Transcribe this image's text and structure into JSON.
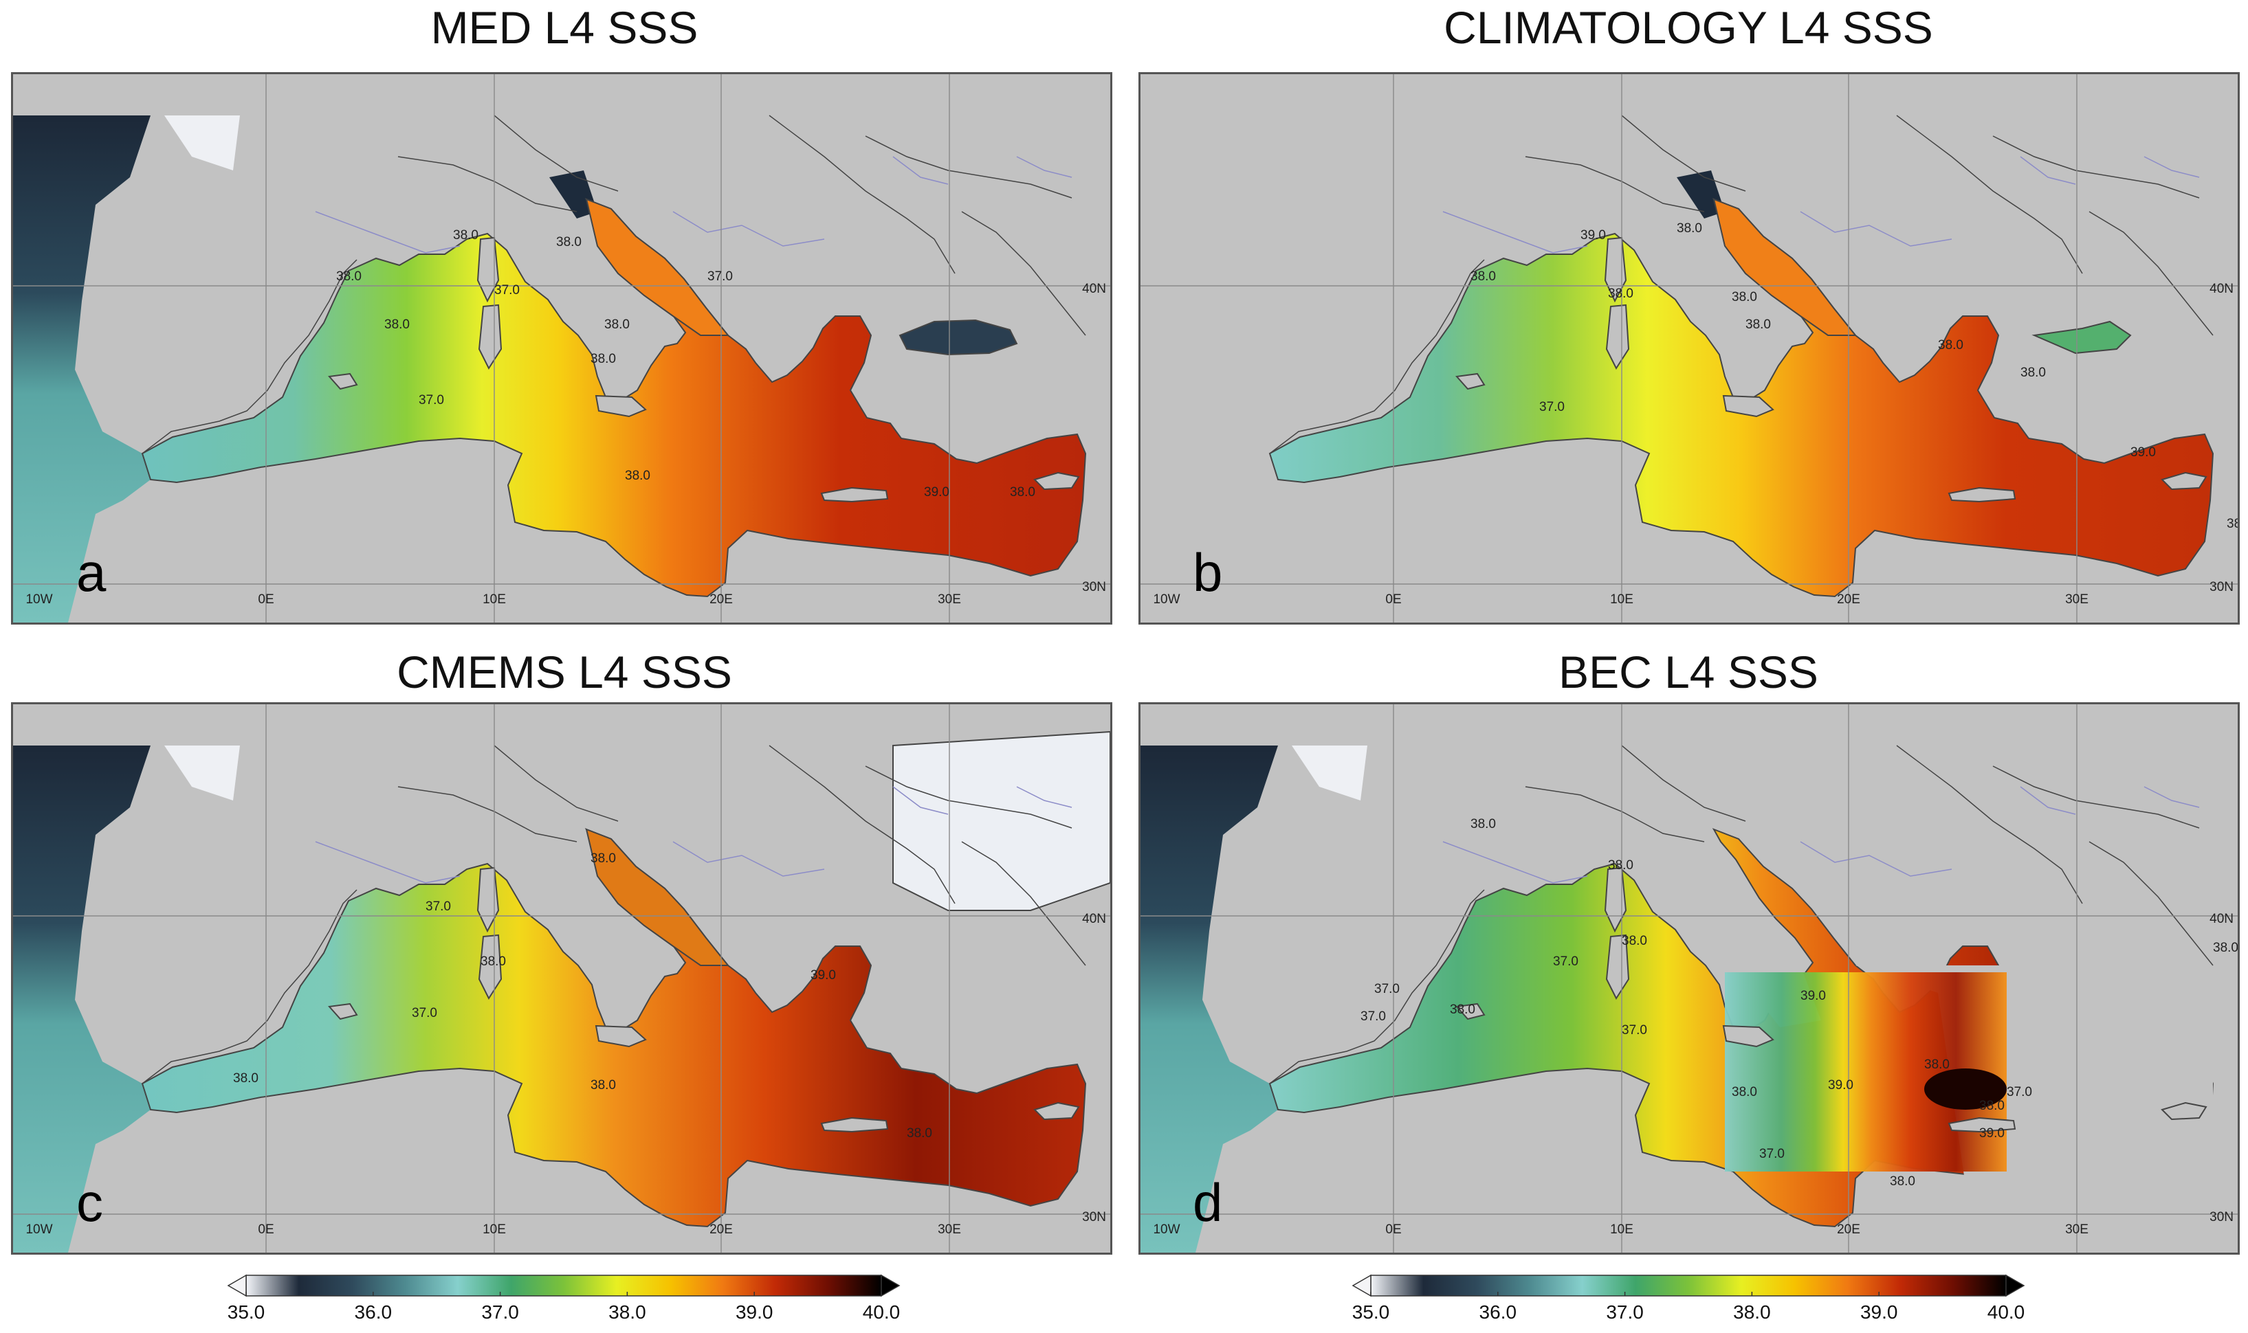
{
  "panels": [
    {
      "id": "a",
      "title": "MED L4 SSS",
      "letter": "a",
      "black_sea": "dark"
    },
    {
      "id": "b",
      "title": "CLIMATOLOGY L4 SSS",
      "letter": "b",
      "black_sea": "green"
    },
    {
      "id": "c",
      "title": "CMEMS L4 SSS",
      "letter": "c",
      "black_sea": "white"
    },
    {
      "id": "d",
      "title": "BEC L4 SSS",
      "letter": "d",
      "black_sea": "none"
    }
  ],
  "lon_ticks": [
    "10W",
    "0E",
    "10E",
    "20E",
    "30E"
  ],
  "lat_ticks": [
    "40N",
    "30N"
  ],
  "contours": {
    "a": [
      "38.0",
      "38.0",
      "38.0",
      "37.0",
      "38.0",
      "38.0",
      "37.0",
      "38.0",
      "37.0",
      "38.0",
      "39.0",
      "38.0",
      "38.0"
    ],
    "b": [
      "38.0",
      "39.0",
      "38.0",
      "38.0",
      "38.0",
      "38.0",
      "37.0",
      "38.0",
      "39.0",
      "38.0",
      "38.0"
    ],
    "c": [
      "38.0",
      "37.0",
      "38.0",
      "37.0",
      "38.0",
      "38.0",
      "39.0",
      "38.0"
    ],
    "d": [
      "38.0",
      "38.0",
      "37.0",
      "37.0",
      "38.0",
      "38.0",
      "37.0",
      "37.0",
      "39.0",
      "38.0",
      "39.0",
      "38.0",
      "38.0",
      "38.0",
      "39.0",
      "37.0",
      "37.0",
      "38.0"
    ]
  },
  "colorbar": {
    "ticks": [
      "35.0",
      "36.0",
      "37.0",
      "38.0",
      "39.0",
      "40.0"
    ],
    "stops": [
      "#f2f4f8",
      "#1e2a3a",
      "#2f4a5c",
      "#4e8a90",
      "#86d0cc",
      "#3fa56a",
      "#7cc23a",
      "#e7ef22",
      "#f6c200",
      "#f07a12",
      "#c22a06",
      "#6e0e02",
      "#000000"
    ]
  },
  "colors": {
    "land": "#c2c2c2",
    "frame": "#555555",
    "coast": "#444444",
    "grid": "#8a8a8a",
    "river": "#8c8cc8"
  }
}
